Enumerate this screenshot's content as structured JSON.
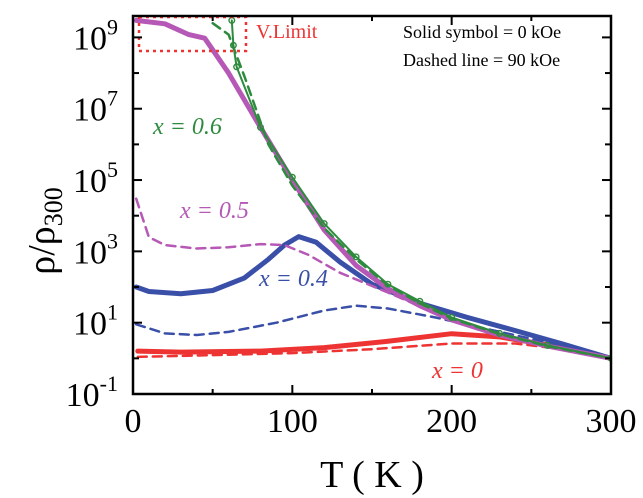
{
  "chart_data": {
    "type": "line",
    "xlabel": "T ( K )",
    "ylabel": "ρ/ρ300",
    "xlim": [
      0,
      300
    ],
    "ylim_log10": [
      -1,
      9.6
    ],
    "y_scale": "log",
    "x_ticks": [
      "0",
      "100",
      "200",
      "300"
    ],
    "y_ticks": [
      {
        "base": "10",
        "exp": "9"
      },
      {
        "base": "10",
        "exp": "7"
      },
      {
        "base": "10",
        "exp": "5"
      },
      {
        "base": "10",
        "exp": "3"
      },
      {
        "base": "10",
        "exp": "1"
      },
      {
        "base": "10",
        "exp": "-1"
      }
    ],
    "annotations": {
      "solid_note": "Solid symbol = 0 kOe",
      "dashed_note": "Dashed line = 90 kOe",
      "vlimit": "V.Limit"
    },
    "colors": {
      "x0": "#ee3333",
      "x04": "#3a4fa8",
      "x05": "#b658b6",
      "x06": "#2e8b3e",
      "vlimit": "#ee3333"
    },
    "series": [
      {
        "name": "x = 0",
        "field": "0 kOe",
        "style": "solid",
        "color": "#ee3333",
        "points": [
          [
            3,
            1.6
          ],
          [
            30,
            1.5
          ],
          [
            80,
            1.6
          ],
          [
            120,
            2.0
          ],
          [
            160,
            3.0
          ],
          [
            200,
            4.9
          ],
          [
            230,
            4.0
          ],
          [
            260,
            2.4
          ],
          [
            300,
            1.0
          ]
        ]
      },
      {
        "name": "x = 0",
        "field": "90 kOe",
        "style": "dashed",
        "color": "#ee3333",
        "points": [
          [
            3,
            1.1
          ],
          [
            40,
            1.2
          ],
          [
            100,
            1.4
          ],
          [
            150,
            1.8
          ],
          [
            200,
            2.6
          ],
          [
            240,
            2.6
          ],
          [
            270,
            1.8
          ],
          [
            300,
            1.0
          ]
        ]
      },
      {
        "name": "x = 0.4",
        "field": "0 kOe",
        "style": "solid",
        "color": "#3a4fa8",
        "points": [
          [
            2,
            100
          ],
          [
            10,
            75
          ],
          [
            30,
            65
          ],
          [
            50,
            80
          ],
          [
            70,
            180
          ],
          [
            85,
            600
          ],
          [
            95,
            1500
          ],
          [
            104,
            2600
          ],
          [
            115,
            1800
          ],
          [
            130,
            500
          ],
          [
            150,
            120
          ],
          [
            180,
            35
          ],
          [
            210,
            14
          ],
          [
            240,
            6
          ],
          [
            270,
            2.5
          ],
          [
            300,
            1.0
          ]
        ]
      },
      {
        "name": "x = 0.4",
        "field": "90 kOe",
        "style": "dashed",
        "color": "#3a4fa8",
        "points": [
          [
            2,
            9
          ],
          [
            20,
            5
          ],
          [
            40,
            4.5
          ],
          [
            60,
            5.5
          ],
          [
            90,
            10
          ],
          [
            120,
            22
          ],
          [
            140,
            30
          ],
          [
            160,
            25
          ],
          [
            190,
            14
          ],
          [
            220,
            7
          ],
          [
            260,
            2.8
          ],
          [
            300,
            1.0
          ]
        ]
      },
      {
        "name": "x = 0.5",
        "field": "0 kOe",
        "style": "solid",
        "color": "#b658b6",
        "points": [
          [
            2,
            3000000000.0
          ],
          [
            20,
            2400000000.0
          ],
          [
            35,
            1200000000.0
          ],
          [
            45,
            950000000.0
          ],
          [
            60,
            100000000.0
          ],
          [
            80,
            3000000.0
          ],
          [
            100,
            100000.0
          ],
          [
            120,
            4000
          ],
          [
            140,
            400
          ],
          [
            160,
            90
          ],
          [
            180,
            30
          ],
          [
            200,
            12
          ],
          [
            230,
            4.5
          ],
          [
            260,
            2.2
          ],
          [
            300,
            1.0
          ]
        ]
      },
      {
        "name": "x = 0.5",
        "field": "90 kOe",
        "style": "dashed",
        "color": "#b658b6",
        "points": [
          [
            2,
            30000
          ],
          [
            10,
            2500
          ],
          [
            20,
            1500
          ],
          [
            40,
            1200
          ],
          [
            60,
            1300
          ],
          [
            80,
            1600
          ],
          [
            95,
            1500
          ],
          [
            110,
            800
          ],
          [
            130,
            250
          ],
          [
            160,
            70
          ],
          [
            200,
            12
          ],
          [
            240,
            3.5
          ],
          [
            300,
            1.0
          ]
        ]
      },
      {
        "name": "x = 0.6",
        "field": "0 kOe",
        "style": "solid",
        "color": "#2e8b3e",
        "points": [
          [
            62,
            3000000000.0
          ],
          [
            63,
            600000000.0
          ],
          [
            65,
            150000000.0
          ],
          [
            80,
            3000000.0
          ],
          [
            100,
            120000.0
          ],
          [
            120,
            6000
          ],
          [
            140,
            700
          ],
          [
            160,
            120
          ],
          [
            180,
            40
          ],
          [
            200,
            14
          ],
          [
            230,
            5
          ],
          [
            260,
            2.3
          ],
          [
            300,
            1.0
          ]
        ]
      },
      {
        "name": "x = 0.6",
        "field": "90 kOe",
        "style": "dashed",
        "color": "#2e8b3e",
        "points": [
          [
            50,
            2500000000.0
          ],
          [
            60,
            1200000000.0
          ],
          [
            70,
            80000000.0
          ],
          [
            85,
            1000000.0
          ],
          [
            100,
            70000.0
          ],
          [
            120,
            4500
          ],
          [
            140,
            600
          ],
          [
            160,
            110
          ],
          [
            180,
            35
          ],
          [
            200,
            13
          ],
          [
            230,
            4.8
          ],
          [
            260,
            2.2
          ],
          [
            300,
            1.0
          ]
        ]
      }
    ],
    "series_labels": [
      {
        "text": "x = 0",
        "color": "#ee3333"
      },
      {
        "text": "x = 0.4",
        "color": "#3a4fa8"
      },
      {
        "text": "x = 0.5",
        "color": "#b658b6"
      },
      {
        "text": "x = 0.6",
        "color": "#2e8b3e"
      }
    ]
  }
}
